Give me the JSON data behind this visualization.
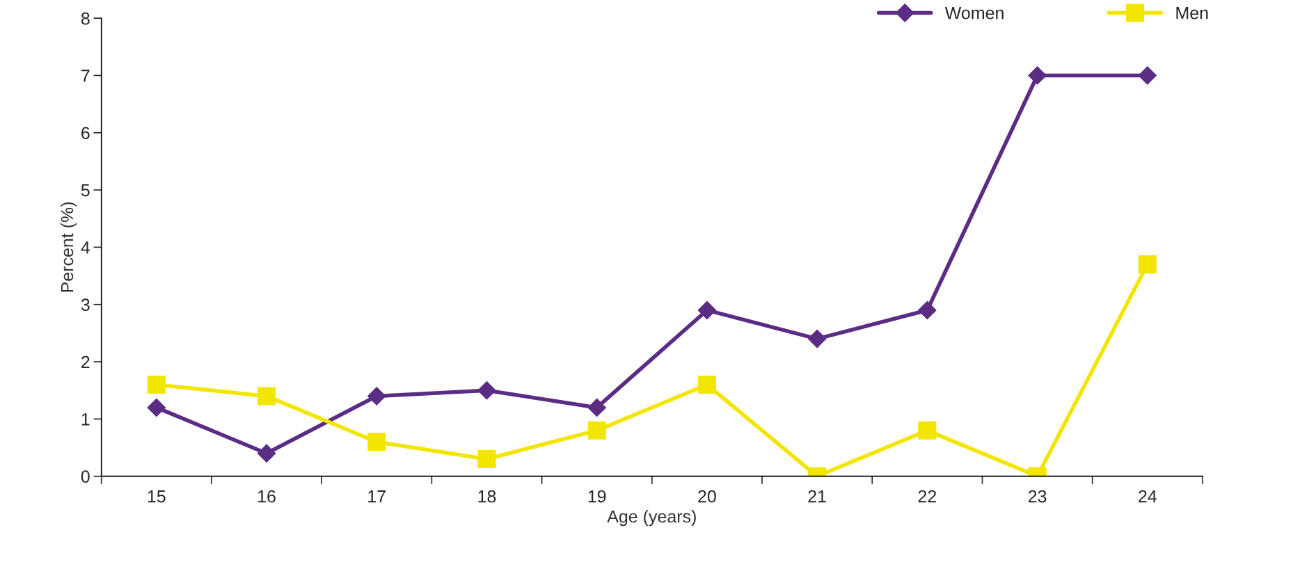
{
  "chart_data": {
    "type": "line",
    "xlabel": "Age (years)",
    "ylabel": "Percent (%)",
    "categories": [
      "15",
      "16",
      "17",
      "18",
      "19",
      "20",
      "21",
      "22",
      "23",
      "24"
    ],
    "series": [
      {
        "name": "Women",
        "color": "#5b2c83",
        "marker": "diamond",
        "values": [
          1.2,
          0.4,
          1.4,
          1.5,
          1.2,
          2.9,
          2.4,
          2.9,
          7.0,
          7.0
        ]
      },
      {
        "name": "Men",
        "color": "#f2e600",
        "marker": "square",
        "values": [
          1.6,
          1.4,
          0.6,
          0.3,
          0.8,
          1.6,
          0.0,
          0.8,
          0.0,
          3.7
        ]
      }
    ],
    "ylim": [
      0,
      8
    ],
    "yticks": [
      0,
      1,
      2,
      3,
      4,
      5,
      6,
      7,
      8
    ],
    "grid": false,
    "legend": "top right",
    "line_style": "solid"
  }
}
